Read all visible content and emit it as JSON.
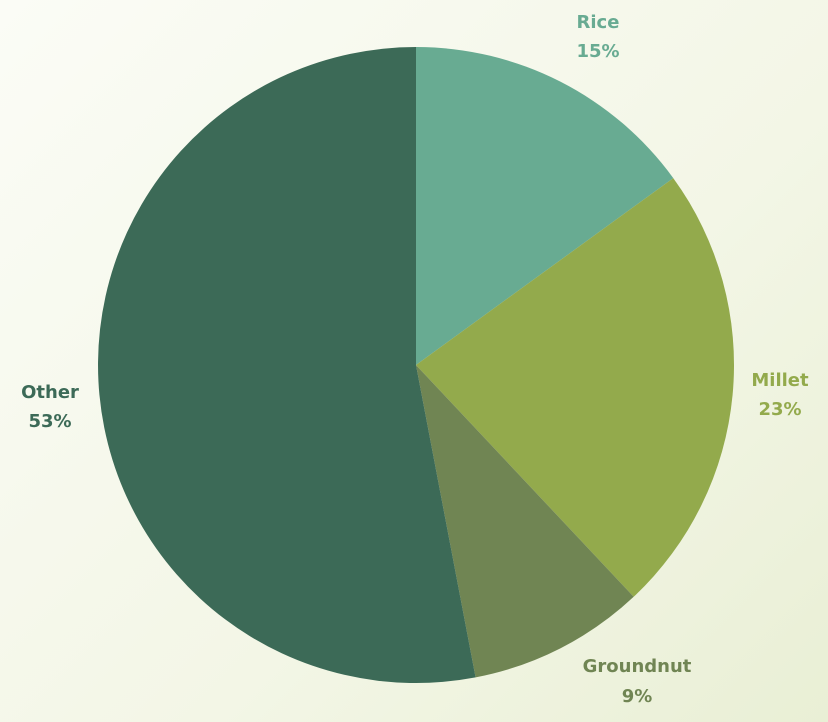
{
  "chart_data": {
    "type": "pie",
    "start_angle_deg": 0,
    "direction": "clockwise",
    "slices": [
      {
        "name": "Rice",
        "label": "Rice",
        "pct_label": "15%",
        "value": 15,
        "color": "#68ab92"
      },
      {
        "name": "Millet",
        "label": "Millet",
        "pct_label": "23%",
        "value": 23,
        "color": "#93aa4c"
      },
      {
        "name": "Groundnut",
        "label": "Groundnut",
        "pct_label": "9%",
        "value": 9,
        "color": "#708553"
      },
      {
        "name": "Other",
        "label": "Other",
        "pct_label": "53%",
        "value": 53,
        "color": "#3c6a57"
      }
    ],
    "legend": "none"
  }
}
